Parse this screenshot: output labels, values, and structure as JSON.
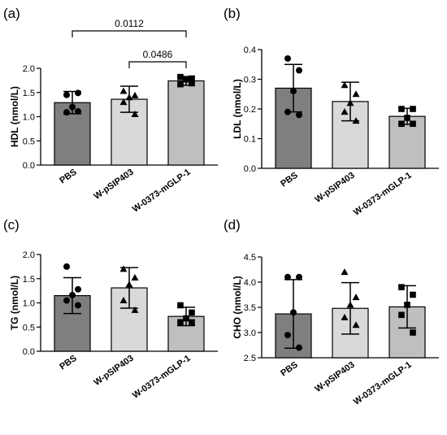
{
  "chart_data": [
    {
      "panel_label": "(a)",
      "type": "bar",
      "ylabel": "HDL (nmol/L)",
      "ylim": [
        0,
        2.0
      ],
      "yticks": [
        "0.0",
        "0.5",
        "1.0",
        "1.5",
        "2.0"
      ],
      "categories": [
        "PBS",
        "W-pSIP403",
        "W-0373-mGLP-1"
      ],
      "values": [
        1.29,
        1.36,
        1.74
      ],
      "sd": [
        0.23,
        0.27,
        0.09
      ],
      "points": [
        [
          1.45,
          1.49,
          1.2,
          1.09,
          1.11
        ],
        [
          1.53,
          1.44,
          1.4,
          1.3,
          1.05
        ],
        [
          1.82,
          1.79,
          1.77,
          1.67,
          1.69
        ]
      ],
      "markers": [
        "circle",
        "triangle",
        "square"
      ],
      "bar_colors": [
        "#7f7f7f",
        "#d9d9d9",
        "#bfbfbf"
      ],
      "comparisons": [
        {
          "from": 0,
          "to": 2,
          "label": "0.0112"
        },
        {
          "from": 1,
          "to": 2,
          "label": "0.0486"
        }
      ]
    },
    {
      "panel_label": "(b)",
      "type": "bar",
      "ylabel": "LDL (nmol/L)",
      "ylim": [
        0,
        0.4
      ],
      "yticks": [
        "0.0",
        "0.1",
        "0.2",
        "0.3",
        "0.4"
      ],
      "categories": [
        "PBS",
        "W-pSIP403",
        "W-0373-mGLP-1"
      ],
      "values": [
        0.27,
        0.225,
        0.175
      ],
      "sd": [
        0.08,
        0.065,
        0.027
      ],
      "points": [
        [
          0.37,
          0.33,
          0.26,
          0.19,
          0.18
        ],
        [
          0.28,
          0.25,
          0.22,
          0.19,
          0.16
        ],
        [
          0.2,
          0.2,
          0.17,
          0.15,
          0.15
        ]
      ],
      "markers": [
        "circle",
        "triangle",
        "square"
      ],
      "bar_colors": [
        "#7f7f7f",
        "#d9d9d9",
        "#bfbfbf"
      ],
      "comparisons": []
    },
    {
      "panel_label": "(c)",
      "type": "bar",
      "ylabel": "TG (nmol/L)",
      "ylim": [
        0,
        2.0
      ],
      "yticks": [
        "0.0",
        "0.5",
        "1.0",
        "1.5",
        "2.0"
      ],
      "categories": [
        "PBS",
        "W-pSIP403",
        "W-0373-mGLP-1"
      ],
      "values": [
        1.15,
        1.31,
        0.72
      ],
      "sd": [
        0.37,
        0.42,
        0.19
      ],
      "points": [
        [
          1.75,
          1.28,
          1.16,
          1.05,
          0.95
        ],
        [
          1.7,
          1.52,
          1.38,
          1.05,
          0.85
        ],
        [
          0.95,
          0.8,
          0.68,
          0.6,
          0.6
        ]
      ],
      "markers": [
        "circle",
        "triangle",
        "square"
      ],
      "bar_colors": [
        "#7f7f7f",
        "#d9d9d9",
        "#bfbfbf"
      ],
      "comparisons": []
    },
    {
      "panel_label": "(d)",
      "type": "bar",
      "ylabel": "CHO (nmol/L)",
      "ylim": [
        2.5,
        4.5
      ],
      "yticks": [
        "2.5",
        "3.0",
        "3.5",
        "4.0",
        "4.5"
      ],
      "categories": [
        "PBS",
        "W-pSIP403",
        "W-0373-mGLP-1"
      ],
      "values": [
        3.37,
        3.48,
        3.51
      ],
      "sd": [
        0.68,
        0.51,
        0.42
      ],
      "points": [
        [
          4.1,
          4.1,
          3.4,
          2.95,
          2.7
        ],
        [
          4.2,
          3.7,
          3.55,
          3.3,
          3.15
        ],
        [
          3.9,
          3.75,
          3.55,
          3.35,
          3.0
        ]
      ],
      "markers": [
        "circle",
        "triangle",
        "square"
      ],
      "bar_colors": [
        "#7f7f7f",
        "#d9d9d9",
        "#bfbfbf"
      ],
      "comparisons": []
    }
  ]
}
